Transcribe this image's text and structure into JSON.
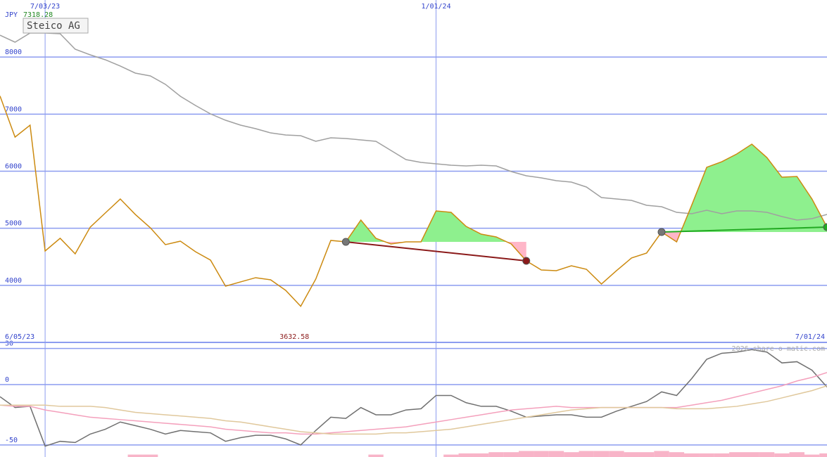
{
  "chart_data": [
    {
      "type": "line",
      "title": "Steico AG",
      "currency": "JPY",
      "start_label": "6/05/23",
      "end_label": "7/01/24",
      "categories": [
        null,
        null,
        null,
        "7/03/23",
        null,
        null,
        null,
        null,
        null,
        null,
        null,
        null,
        null,
        null,
        null,
        null,
        null,
        null,
        null,
        null,
        null,
        null,
        null,
        null,
        null,
        null,
        null,
        null,
        null,
        "1/01/24",
        null,
        null,
        null,
        null,
        null,
        null,
        null,
        null,
        null,
        null,
        null,
        null,
        null,
        null,
        null,
        null,
        null,
        null,
        null,
        null,
        null,
        null,
        null,
        null,
        null,
        null
      ],
      "ylim": [
        3000,
        9000
      ],
      "yticks": [
        4000,
        5000,
        6000,
        7000,
        8000
      ],
      "grid": true,
      "grid_color": "#8c9cf0",
      "series": [
        {
          "color": "#cc8a10",
          "values": [
            7318.28,
            6598,
            6807,
            4602,
            4824,
            4552,
            5020,
            5267,
            5513,
            5242,
            5008,
            4713,
            4774,
            4589,
            4442,
            3986,
            4060,
            4134,
            4097,
            3912,
            3632.58,
            4109,
            4787,
            4762,
            5144,
            4824,
            4725,
            4762,
            4762,
            5304,
            5279,
            5033,
            4897,
            4848,
            4725,
            4429,
            4269,
            4257,
            4343,
            4281,
            4023,
            4257,
            4479,
            4565,
            4934,
            4762,
            5403,
            6068,
            6166,
            6302,
            6474,
            6240,
            5895,
            5908,
            5513,
            5020
          ]
        },
        {
          "color": "#a0a0a0",
          "values": [
            8384,
            8261,
            8421,
            8421,
            8409,
            8138,
            8039,
            7953,
            7842,
            7719,
            7670,
            7522,
            7312,
            7152,
            7004,
            6893,
            6807,
            6745,
            6671,
            6635,
            6622,
            6524,
            6585,
            6573,
            6548,
            6524,
            6364,
            6203,
            6154,
            6129,
            6105,
            6092,
            6105,
            6092,
            5994,
            5920,
            5883,
            5834,
            5809,
            5723,
            5538,
            5513,
            5489,
            5403,
            5378,
            5279,
            5255,
            5316,
            5255,
            5304,
            5304,
            5279,
            5205,
            5144,
            5168,
            5242
          ]
        }
      ],
      "trades": [
        {
          "from": 23,
          "to": 35,
          "color": "#8b1a1a"
        },
        {
          "from": 44,
          "to": 55,
          "color": "#22aa22"
        }
      ],
      "fill_up": "#8ef08e",
      "fill_down": "#ffb6c8"
    },
    {
      "type": "line",
      "watermark": "2026 share-o-matic.com",
      "ylim": [
        -60,
        35
      ],
      "yticks": [
        30,
        0,
        -50
      ],
      "grid": true,
      "series": [
        {
          "color": "#707070",
          "values": [
            -10,
            -19,
            -18,
            -51,
            -47,
            -48,
            -41,
            -37,
            -31,
            -34,
            -37,
            -41,
            -38,
            -39,
            -40,
            -47,
            -44,
            -42,
            -42,
            -45,
            -50,
            -38,
            -27,
            -28,
            -19,
            -25,
            -25,
            -21,
            -20,
            -9,
            -9,
            -15,
            -18,
            -18,
            -22,
            -27,
            -26,
            -25,
            -25,
            -27,
            -27,
            -22,
            -18,
            -14,
            -6,
            -9,
            5,
            21,
            26,
            27,
            29,
            27,
            18,
            19,
            12,
            -2
          ]
        },
        {
          "color": "#f4a0bc",
          "values": [
            -17,
            -18,
            -18,
            -21,
            -23,
            -25,
            -27,
            -28,
            -29,
            -30,
            -31,
            -32,
            -33,
            -34,
            -35,
            -37,
            -38,
            -39,
            -40,
            -40,
            -41,
            -41,
            -40,
            -39,
            -38,
            -37,
            -36,
            -35,
            -33,
            -31,
            -29,
            -27,
            -25,
            -23,
            -21,
            -20,
            -19,
            -18,
            -19,
            -19,
            -19,
            -19,
            -19,
            -19,
            -19,
            -19,
            -17,
            -15,
            -13,
            -10,
            -7,
            -4,
            -1,
            3,
            6,
            10
          ]
        },
        {
          "color": "#e0c89c",
          "values": [
            -17,
            -17,
            -17,
            -17,
            -18,
            -18,
            -18,
            -19,
            -21,
            -23,
            -24,
            -25,
            -26,
            -27,
            -28,
            -30,
            -31,
            -33,
            -35,
            -37,
            -39,
            -40,
            -41,
            -41,
            -41,
            -41,
            -40,
            -40,
            -39,
            -38,
            -37,
            -35,
            -33,
            -31,
            -29,
            -27,
            -25,
            -23,
            -21,
            -20,
            -19,
            -19,
            -19,
            -19,
            -19,
            -20,
            -20,
            -20,
            -19,
            -18,
            -16,
            -14,
            -11,
            -8,
            -5,
            -1
          ]
        }
      ],
      "bars": {
        "color": "#f8b4c8",
        "values": [
          null,
          null,
          null,
          null,
          null,
          null,
          null,
          null,
          null,
          -58,
          -58,
          null,
          null,
          null,
          null,
          null,
          null,
          null,
          null,
          null,
          null,
          null,
          null,
          null,
          null,
          -58,
          null,
          null,
          null,
          null,
          -58,
          -57,
          -57,
          -56,
          -56,
          -55,
          -55,
          -55,
          -56,
          -55,
          -55,
          -55,
          -56,
          -56,
          -55,
          -56,
          -57,
          -57,
          -57,
          -56,
          -56,
          -56,
          -57,
          -56,
          -58,
          -57
        ]
      }
    }
  ]
}
